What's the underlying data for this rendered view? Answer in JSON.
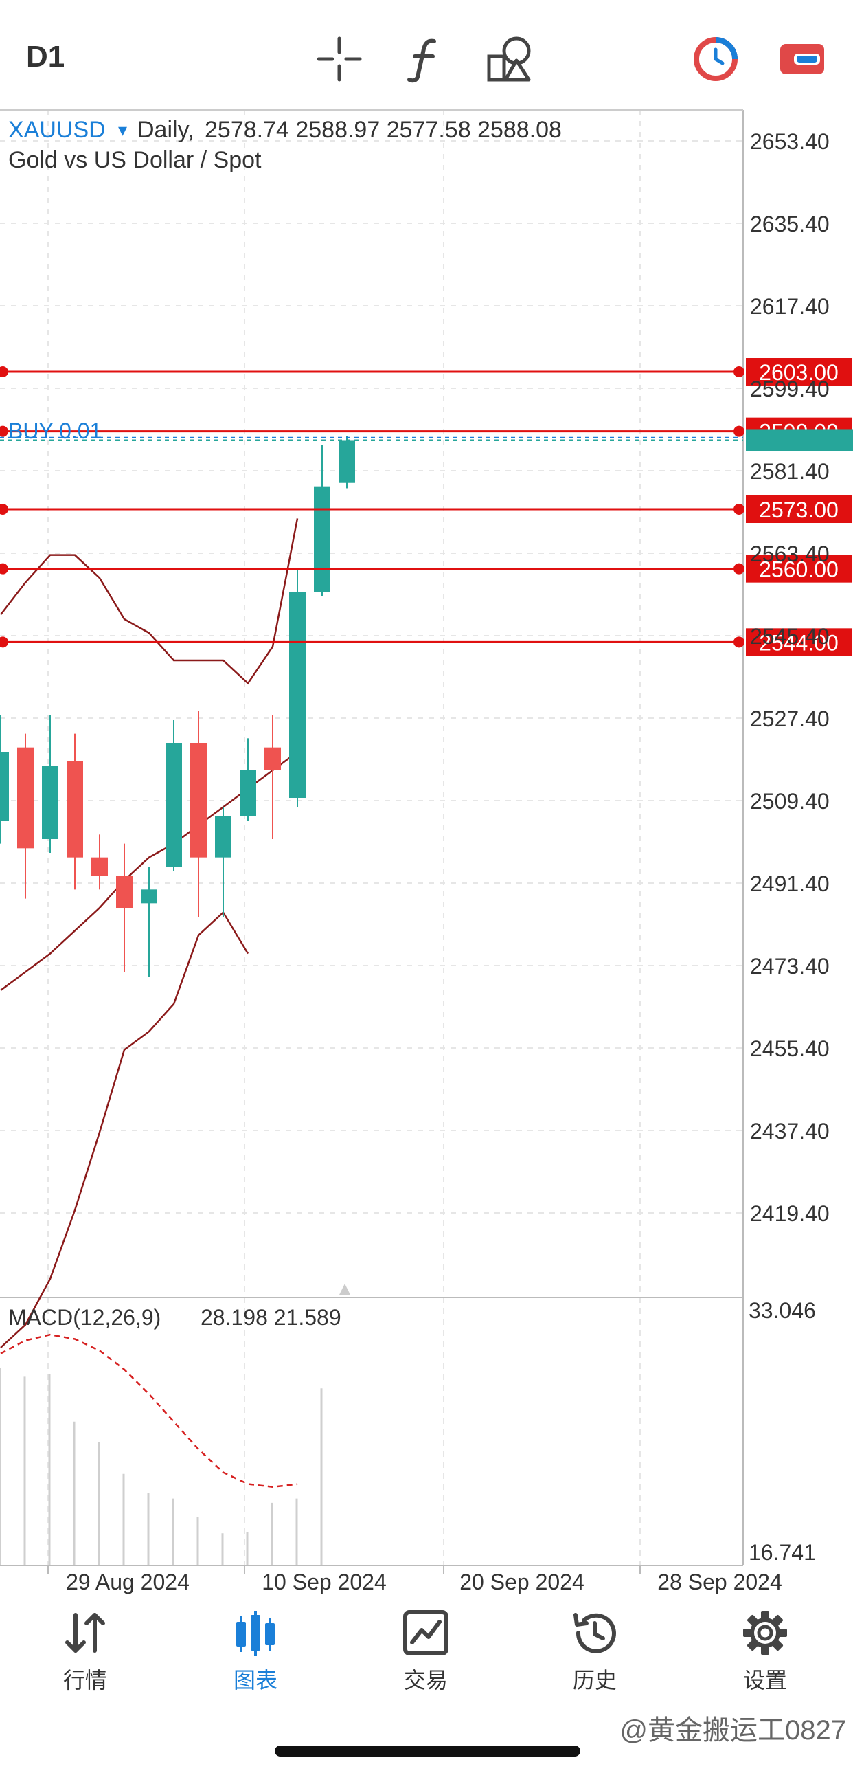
{
  "toolbar": {
    "timeframe": "D1",
    "icons": [
      "crosshair-icon",
      "indicator-f-icon",
      "objects-icon",
      "timer-icon",
      "account-icon"
    ]
  },
  "symbol": {
    "name": "XAUUSD",
    "dropdown_glyph": "▾",
    "period": "Daily,",
    "ohlc": "2578.74 2588.97 2577.58 2588.08",
    "description": "Gold vs US Dollar / Spot"
  },
  "price_axis": {
    "labels": [
      "2653.40",
      "2635.40",
      "2617.40",
      "2599.40",
      "2581.40",
      "2563.40",
      "2545.40",
      "2527.40",
      "2509.40",
      "2491.40",
      "2473.40",
      "2455.40",
      "2437.40",
      "2419.40"
    ]
  },
  "levels": [
    {
      "label": "2603.00",
      "price": 2603.0
    },
    {
      "label": "2590.00",
      "price": 2590.0
    },
    {
      "label": "2573.00",
      "price": 2573.0
    },
    {
      "label": "2560.00",
      "price": 2560.0
    },
    {
      "label": "2544.00",
      "price": 2544.0
    }
  ],
  "order": {
    "label": "BUY 0.01",
    "price": 2590.0
  },
  "current_price": 2588.08,
  "macd": {
    "label": "MACD(12,26,9)",
    "values": "28.198 21.589",
    "axis_max": "33.046",
    "axis_min": "16.741"
  },
  "time_axis": {
    "labels": [
      "29 Aug 2024",
      "10 Sep 2024",
      "20 Sep 2024",
      "28 Sep 2024"
    ]
  },
  "chart_data": {
    "type": "candlestick",
    "candles": [
      {
        "open": 2505,
        "high": 2528,
        "low": 2500,
        "close": 2520
      },
      {
        "open": 2521,
        "high": 2524,
        "low": 2488,
        "close": 2499
      },
      {
        "open": 2501,
        "high": 2528,
        "low": 2498,
        "close": 2517
      },
      {
        "open": 2518,
        "high": 2524,
        "low": 2490,
        "close": 2497
      },
      {
        "open": 2497,
        "high": 2502,
        "low": 2490,
        "close": 2493
      },
      {
        "open": 2493,
        "high": 2500,
        "low": 2472,
        "close": 2486
      },
      {
        "open": 2487,
        "high": 2495,
        "low": 2471,
        "close": 2490
      },
      {
        "open": 2495,
        "high": 2527,
        "low": 2494,
        "close": 2522
      },
      {
        "open": 2522,
        "high": 2529,
        "low": 2484,
        "close": 2497
      },
      {
        "open": 2497,
        "high": 2508,
        "low": 2484,
        "close": 2506
      },
      {
        "open": 2506,
        "high": 2523,
        "low": 2505,
        "close": 2516
      },
      {
        "open": 2521,
        "high": 2528,
        "low": 2501,
        "close": 2516
      },
      {
        "open": 2510,
        "high": 2560,
        "low": 2508,
        "close": 2555
      },
      {
        "open": 2555,
        "high": 2587,
        "low": 2554,
        "close": 2578
      },
      {
        "open": 2578.74,
        "high": 2588.97,
        "low": 2577.58,
        "close": 2588.08
      }
    ],
    "bollinger_upper": [
      2550,
      2557,
      2563,
      2563,
      2558,
      2549,
      2546,
      2540,
      2540,
      2540,
      2535,
      2543,
      2571
    ],
    "bollinger_middle": [
      2468,
      2472,
      2476,
      2481,
      2486,
      2492,
      2497,
      2500,
      2504,
      2508,
      2512,
      2516,
      2520
    ],
    "bollinger_lower": [
      2390,
      2395,
      2405,
      2420,
      2437,
      2455,
      2459,
      2465,
      2480,
      2485,
      2476
    ],
    "macd_histogram": [
      29.6,
      29.0,
      29.2,
      25.9,
      24.5,
      22.3,
      21.0,
      20.6,
      19.3,
      18.2,
      18.3,
      20.3,
      20.6,
      28.198
    ],
    "macd_signal": [
      30.6,
      31.5,
      31.9,
      31.6,
      30.8,
      29.5,
      27.8,
      25.9,
      24.0,
      22.4,
      21.6,
      21.4,
      21.589
    ],
    "ylim": [
      2410,
      2656
    ]
  },
  "bottom_nav": [
    {
      "label": "行情",
      "icon": "quotes-arrows-icon",
      "active": false
    },
    {
      "label": "图表",
      "icon": "chart-candles-icon",
      "active": true
    },
    {
      "label": "交易",
      "icon": "trade-chart-icon",
      "active": false
    },
    {
      "label": "历史",
      "icon": "history-clock-icon",
      "active": false
    },
    {
      "label": "设置",
      "icon": "settings-gear-icon",
      "active": false
    }
  ],
  "watermark": "@黄金搬运工0827",
  "colors": {
    "bull": "#26a69a",
    "bear": "#ef5350",
    "level": "#e01010",
    "band": "#8b1a1a",
    "accent": "#1a7fd8"
  }
}
